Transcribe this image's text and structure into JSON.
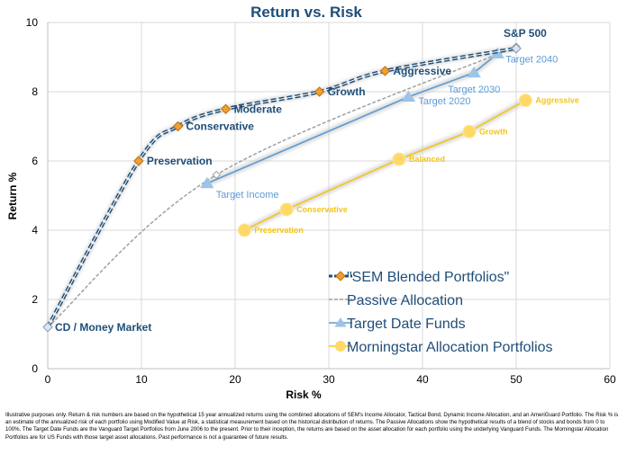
{
  "chart_data": {
    "type": "line",
    "title": "Return vs. Risk",
    "xlabel": "Risk %",
    "ylabel": "Return %",
    "xlim": [
      0,
      60
    ],
    "ylim": [
      0,
      10
    ],
    "xticks": [
      0,
      10,
      20,
      30,
      40,
      50,
      60
    ],
    "yticks": [
      0,
      2,
      4,
      6,
      8,
      10
    ],
    "grid": true,
    "legend_position": "bottom-right",
    "series": [
      {
        "name": "\"SEM Blended Portfolios\"",
        "style": "dashed-navy-diamond",
        "color": "#1f4e79",
        "marker_color": "#f0a030",
        "points": [
          {
            "x": 0,
            "y": 1.2,
            "label": "CD / Money Market"
          },
          {
            "x": 9.7,
            "y": 6.0,
            "label": "Preservation"
          },
          {
            "x": 13.9,
            "y": 7.0,
            "label": "Conservative"
          },
          {
            "x": 19,
            "y": 7.5,
            "label": "Moderate"
          },
          {
            "x": 29,
            "y": 8.0,
            "label": "Growth"
          },
          {
            "x": 36,
            "y": 8.6,
            "label": "Aggressive"
          },
          {
            "x": 50,
            "y": 9.25,
            "label": "S&P 500"
          }
        ]
      },
      {
        "name": "Passive Allocation",
        "style": "dashed-gray",
        "color": "#a0a0a0",
        "points": [
          {
            "x": 0,
            "y": 1.2
          },
          {
            "x": 18,
            "y": 5.6
          },
          {
            "x": 50,
            "y": 9.3
          }
        ]
      },
      {
        "name": "Target Date Funds",
        "style": "solid-blue-triangle",
        "color": "#5b9bd5",
        "points": [
          {
            "x": 17,
            "y": 5.35,
            "label": "Target Income"
          },
          {
            "x": 38.5,
            "y": 7.85,
            "label": "Target 2020"
          },
          {
            "x": 45.5,
            "y": 8.55,
            "label": "Target 2030"
          },
          {
            "x": 48,
            "y": 9.1,
            "label": "Target 2040"
          }
        ]
      },
      {
        "name": "Morningstar Allocation Portfolios",
        "style": "solid-yellow-circle",
        "color": "#f5c518",
        "points": [
          {
            "x": 21,
            "y": 4.0,
            "label": "Preservation"
          },
          {
            "x": 25.5,
            "y": 4.6,
            "label": "Conservative"
          },
          {
            "x": 37.5,
            "y": 6.05,
            "label": "Balanced"
          },
          {
            "x": 45,
            "y": 6.85,
            "label": "Growth"
          },
          {
            "x": 51,
            "y": 7.75,
            "label": "Aggressive"
          }
        ]
      }
    ]
  },
  "footnote": "Illustrative purposes only. Return & risk numbers are based on the hypothetical 15 year annualized returns using the combined allocations of SEM's Income Allocator, Tactical Bond, Dynamic Income Allocation, and an AmeriGuard Portfolio. The Risk % is an estimate of the annualized risk of each portfolio using Modified Value at Risk, a statistical measurement based on the historical distribution of returns. The Passive Allocations show the hypothetical results of a blend of stocks and bonds from 0 to 100%. The Target Date Funds are the Vanguard Target Portfolios from June 2006 to the present. Prior to their inception, the returns are based on the asset allocation for each portfolio using the underlying Vanguard Funds. The Morningstar Allocation Portfolios are for US Funds with those target asset allocations. Past performance is not a guarantee of future results."
}
